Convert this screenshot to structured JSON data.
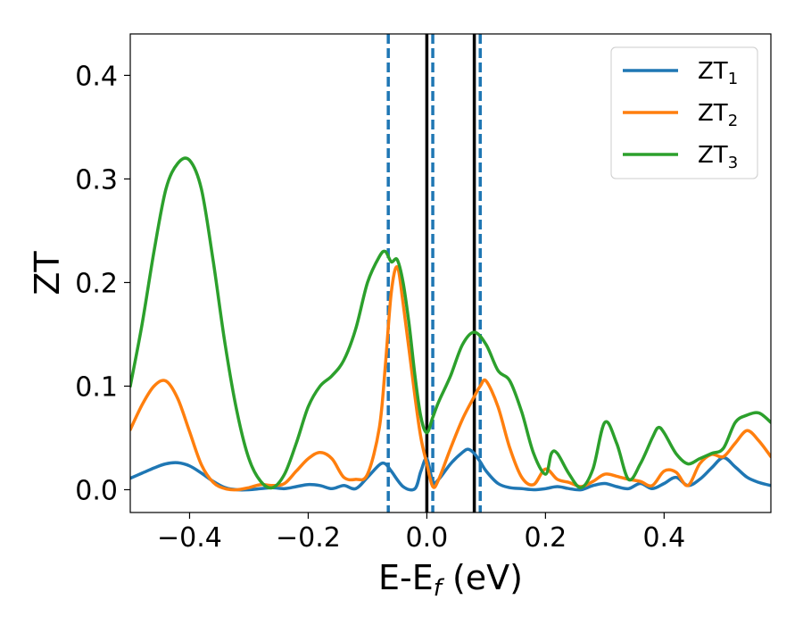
{
  "chart_data": {
    "type": "line",
    "xlabel": "E-E",
    "xlabel_sub": "f",
    "xlabel_unit": " (eV)",
    "ylabel": "ZT",
    "xlim": [
      -0.5,
      0.58
    ],
    "ylim": [
      -0.022,
      0.44
    ],
    "xticks": [
      -0.4,
      -0.2,
      0.0,
      0.2,
      0.4
    ],
    "xtick_labels": [
      "−0.4",
      "−0.2",
      "0.0",
      "0.2",
      "0.4"
    ],
    "yticks": [
      0.0,
      0.1,
      0.2,
      0.3,
      0.4
    ],
    "ytick_labels": [
      "0.0",
      "0.1",
      "0.2",
      "0.3",
      "0.4"
    ],
    "grid": false,
    "legend_position": "top-right",
    "vlines_solid": [
      0.0,
      0.08
    ],
    "vlines_dashed": [
      -0.065,
      0.01,
      0.09
    ],
    "series": [
      {
        "name": "ZT",
        "sub": "1",
        "color": "#1f77b4",
        "x": [
          -0.5,
          -0.48,
          -0.46,
          -0.44,
          -0.42,
          -0.4,
          -0.38,
          -0.36,
          -0.34,
          -0.32,
          -0.3,
          -0.28,
          -0.26,
          -0.24,
          -0.22,
          -0.2,
          -0.18,
          -0.16,
          -0.14,
          -0.12,
          -0.1,
          -0.08,
          -0.07,
          -0.06,
          -0.04,
          -0.02,
          -0.01,
          0.0,
          0.01,
          0.02,
          0.04,
          0.06,
          0.07,
          0.08,
          0.09,
          0.1,
          0.12,
          0.14,
          0.16,
          0.18,
          0.2,
          0.22,
          0.24,
          0.26,
          0.28,
          0.3,
          0.32,
          0.34,
          0.36,
          0.38,
          0.4,
          0.42,
          0.44,
          0.46,
          0.48,
          0.5,
          0.52,
          0.54,
          0.56,
          0.58
        ],
        "y": [
          0.011,
          0.016,
          0.021,
          0.025,
          0.026,
          0.023,
          0.016,
          0.008,
          0.002,
          0.0,
          0.0,
          0.001,
          0.002,
          0.001,
          0.003,
          0.005,
          0.004,
          0.001,
          0.004,
          0.001,
          0.012,
          0.024,
          0.025,
          0.018,
          0.003,
          0.001,
          0.018,
          0.03,
          0.008,
          0.01,
          0.025,
          0.036,
          0.039,
          0.035,
          0.027,
          0.018,
          0.006,
          0.002,
          0.001,
          0.0,
          0.001,
          0.003,
          0.001,
          0.0,
          0.004,
          0.006,
          0.003,
          0.001,
          0.006,
          0.001,
          0.006,
          0.012,
          0.004,
          0.01,
          0.021,
          0.031,
          0.022,
          0.012,
          0.007,
          0.004
        ]
      },
      {
        "name": "ZT",
        "sub": "2",
        "color": "#ff7f0e",
        "x": [
          -0.5,
          -0.48,
          -0.46,
          -0.44,
          -0.42,
          -0.4,
          -0.38,
          -0.36,
          -0.34,
          -0.32,
          -0.3,
          -0.28,
          -0.26,
          -0.24,
          -0.22,
          -0.2,
          -0.18,
          -0.16,
          -0.14,
          -0.12,
          -0.1,
          -0.08,
          -0.07,
          -0.06,
          -0.05,
          -0.04,
          -0.02,
          -0.01,
          0.0,
          0.01,
          0.02,
          0.04,
          0.06,
          0.08,
          0.09,
          0.1,
          0.12,
          0.14,
          0.16,
          0.18,
          0.2,
          0.22,
          0.24,
          0.26,
          0.28,
          0.3,
          0.32,
          0.34,
          0.36,
          0.38,
          0.4,
          0.42,
          0.44,
          0.46,
          0.48,
          0.5,
          0.52,
          0.54,
          0.56,
          0.58
        ],
        "y": [
          0.058,
          0.082,
          0.1,
          0.105,
          0.088,
          0.056,
          0.024,
          0.007,
          0.001,
          0.0,
          0.002,
          0.005,
          0.004,
          0.006,
          0.018,
          0.03,
          0.036,
          0.03,
          0.012,
          0.01,
          0.015,
          0.06,
          0.12,
          0.19,
          0.215,
          0.18,
          0.09,
          0.05,
          0.025,
          0.003,
          0.01,
          0.04,
          0.068,
          0.09,
          0.1,
          0.105,
          0.08,
          0.04,
          0.012,
          0.005,
          0.02,
          0.01,
          0.007,
          0.003,
          0.008,
          0.015,
          0.013,
          0.01,
          0.008,
          0.004,
          0.018,
          0.017,
          0.004,
          0.025,
          0.034,
          0.032,
          0.045,
          0.057,
          0.047,
          0.032
        ]
      },
      {
        "name": "ZT",
        "sub": "3",
        "color": "#2ca02c",
        "x": [
          -0.5,
          -0.48,
          -0.46,
          -0.44,
          -0.42,
          -0.4,
          -0.38,
          -0.36,
          -0.34,
          -0.32,
          -0.3,
          -0.28,
          -0.26,
          -0.24,
          -0.22,
          -0.2,
          -0.18,
          -0.16,
          -0.14,
          -0.12,
          -0.1,
          -0.08,
          -0.07,
          -0.06,
          -0.05,
          -0.04,
          -0.03,
          -0.02,
          -0.01,
          0.0,
          0.01,
          0.02,
          0.04,
          0.06,
          0.08,
          0.1,
          0.12,
          0.14,
          0.16,
          0.18,
          0.2,
          0.21,
          0.22,
          0.24,
          0.26,
          0.28,
          0.3,
          0.32,
          0.34,
          0.36,
          0.38,
          0.39,
          0.4,
          0.42,
          0.44,
          0.46,
          0.48,
          0.5,
          0.52,
          0.54,
          0.56,
          0.58
        ],
        "y": [
          0.1,
          0.16,
          0.23,
          0.29,
          0.315,
          0.318,
          0.29,
          0.22,
          0.14,
          0.075,
          0.03,
          0.008,
          0.002,
          0.015,
          0.045,
          0.08,
          0.1,
          0.11,
          0.125,
          0.155,
          0.2,
          0.225,
          0.23,
          0.22,
          0.222,
          0.2,
          0.16,
          0.11,
          0.07,
          0.055,
          0.07,
          0.085,
          0.11,
          0.14,
          0.152,
          0.14,
          0.115,
          0.105,
          0.075,
          0.035,
          0.015,
          0.035,
          0.035,
          0.015,
          0.002,
          0.02,
          0.065,
          0.045,
          0.01,
          0.025,
          0.05,
          0.06,
          0.055,
          0.035,
          0.025,
          0.03,
          0.035,
          0.04,
          0.065,
          0.072,
          0.074,
          0.065
        ]
      }
    ]
  }
}
